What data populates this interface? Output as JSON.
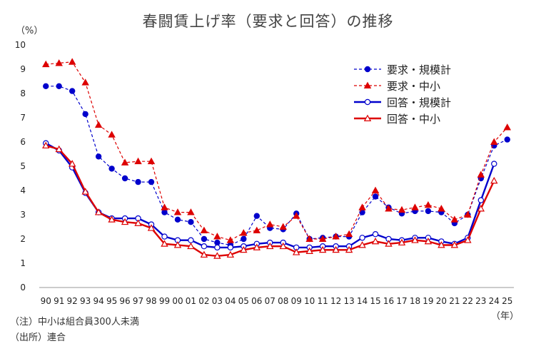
{
  "title": "春闘賃上げ率（要求と回答）の推移",
  "unit_label": "（%）",
  "year_unit": "（年）",
  "notes": [
    "（注）中小は組合員300人未満",
    "（出所）連合"
  ],
  "chart_data": {
    "type": "line",
    "title": "春闘賃上げ率（要求と回答）の推移",
    "ylabel": "（%）",
    "xlabel": "（年）",
    "ylim": [
      0,
      10
    ],
    "yticks": [
      0,
      1,
      2,
      3,
      4,
      5,
      6,
      7,
      8,
      9,
      10
    ],
    "grid": false,
    "legend_position": "top-right",
    "categories": [
      "90",
      "91",
      "92",
      "93",
      "94",
      "95",
      "96",
      "97",
      "98",
      "99",
      "00",
      "01",
      "02",
      "03",
      "04",
      "05",
      "06",
      "07",
      "08",
      "09",
      "10",
      "11",
      "12",
      "13",
      "14",
      "15",
      "16",
      "17",
      "18",
      "19",
      "20",
      "21",
      "22",
      "23",
      "24",
      "25"
    ],
    "series": [
      {
        "name": "要求・規模計",
        "color": "#0000cc",
        "style": "dashed",
        "marker": "filled-circle",
        "values": [
          8.3,
          8.3,
          8.1,
          7.15,
          5.4,
          4.9,
          4.5,
          4.35,
          4.35,
          3.1,
          2.8,
          2.7,
          2.0,
          1.85,
          1.75,
          2.0,
          2.95,
          2.45,
          2.4,
          3.05,
          2.0,
          2.05,
          2.1,
          2.1,
          3.1,
          3.75,
          3.3,
          3.05,
          3.15,
          3.15,
          3.1,
          2.65,
          3.0,
          4.5,
          5.85,
          6.1
        ]
      },
      {
        "name": "要求・中小",
        "color": "#dd0000",
        "style": "dashed",
        "marker": "filled-triangle",
        "values": [
          9.2,
          9.25,
          9.3,
          8.45,
          6.7,
          6.3,
          5.15,
          5.2,
          5.2,
          3.3,
          3.1,
          3.1,
          2.35,
          2.1,
          1.95,
          2.25,
          2.35,
          2.6,
          2.5,
          2.95,
          2.0,
          2.0,
          2.1,
          2.2,
          3.3,
          4.0,
          3.25,
          3.2,
          3.3,
          3.4,
          3.25,
          2.8,
          3.0,
          4.65,
          6.0,
          6.6
        ]
      },
      {
        "name": "回答・規模計",
        "color": "#0000cc",
        "style": "solid",
        "marker": "open-circle",
        "values": [
          5.95,
          5.65,
          4.95,
          3.9,
          3.1,
          2.85,
          2.85,
          2.85,
          2.6,
          2.1,
          1.95,
          1.95,
          1.7,
          1.65,
          1.65,
          1.7,
          1.8,
          1.85,
          1.85,
          1.65,
          1.65,
          1.7,
          1.7,
          1.7,
          2.05,
          2.2,
          2.0,
          1.95,
          2.05,
          2.05,
          1.9,
          1.8,
          2.05,
          3.6,
          5.1,
          null
        ]
      },
      {
        "name": "回答・中小",
        "color": "#dd0000",
        "style": "solid",
        "marker": "open-triangle",
        "values": [
          5.85,
          5.7,
          5.1,
          3.95,
          3.1,
          2.8,
          2.7,
          2.65,
          2.45,
          1.8,
          1.75,
          1.7,
          1.35,
          1.3,
          1.35,
          1.55,
          1.65,
          1.7,
          1.7,
          1.45,
          1.5,
          1.55,
          1.55,
          1.55,
          1.75,
          1.9,
          1.8,
          1.85,
          1.95,
          1.9,
          1.75,
          1.75,
          1.95,
          3.25,
          4.4,
          null
        ]
      }
    ]
  }
}
